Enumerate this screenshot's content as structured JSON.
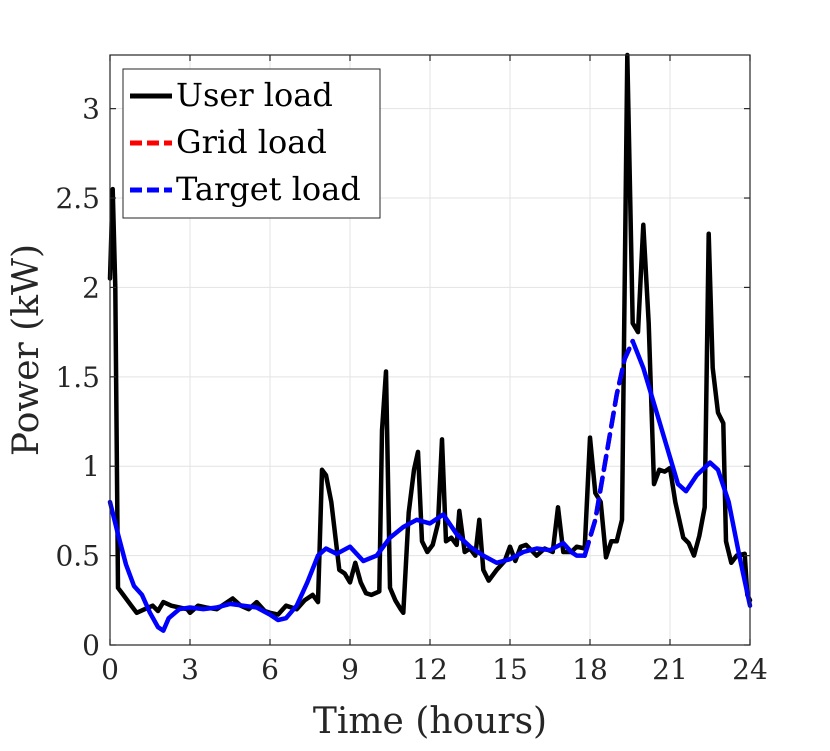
{
  "chart_data": {
    "type": "line",
    "xlabel": "Time (hours)",
    "ylabel": "Power (kW)",
    "xlim": [
      0,
      24
    ],
    "ylim": [
      0,
      3.3
    ],
    "xticks": [
      0,
      3,
      6,
      9,
      12,
      15,
      18,
      21,
      24
    ],
    "xtick_labels": [
      "0",
      "3",
      "6",
      "9",
      "12",
      "15",
      "18",
      "21",
      "24"
    ],
    "yticks": [
      0,
      0.5,
      1,
      1.5,
      2,
      2.5,
      3
    ],
    "ytick_labels": [
      "0",
      "0.5",
      "1",
      "1.5",
      "2",
      "2.5",
      "3"
    ],
    "grid": true,
    "legend_position": "top-left",
    "series": [
      {
        "name": "User load",
        "color": "#000000",
        "style": "solid",
        "points": [
          [
            0,
            2.05
          ],
          [
            0.1,
            2.55
          ],
          [
            0.2,
            2.0
          ],
          [
            0.3,
            0.32
          ],
          [
            0.5,
            0.28
          ],
          [
            0.8,
            0.22
          ],
          [
            1.0,
            0.18
          ],
          [
            1.3,
            0.2
          ],
          [
            1.6,
            0.22
          ],
          [
            1.8,
            0.19
          ],
          [
            2.0,
            0.24
          ],
          [
            2.3,
            0.22
          ],
          [
            2.6,
            0.21
          ],
          [
            2.9,
            0.2
          ],
          [
            3.0,
            0.18
          ],
          [
            3.3,
            0.22
          ],
          [
            3.6,
            0.21
          ],
          [
            4.0,
            0.2
          ],
          [
            4.3,
            0.23
          ],
          [
            4.6,
            0.26
          ],
          [
            4.9,
            0.22
          ],
          [
            5.2,
            0.2
          ],
          [
            5.5,
            0.24
          ],
          [
            5.8,
            0.19
          ],
          [
            6.0,
            0.18
          ],
          [
            6.3,
            0.17
          ],
          [
            6.6,
            0.22
          ],
          [
            7.0,
            0.2
          ],
          [
            7.3,
            0.25
          ],
          [
            7.6,
            0.28
          ],
          [
            7.8,
            0.24
          ],
          [
            7.95,
            0.98
          ],
          [
            8.1,
            0.95
          ],
          [
            8.3,
            0.8
          ],
          [
            8.6,
            0.42
          ],
          [
            8.8,
            0.4
          ],
          [
            9.0,
            0.35
          ],
          [
            9.2,
            0.46
          ],
          [
            9.4,
            0.35
          ],
          [
            9.6,
            0.29
          ],
          [
            9.8,
            0.28
          ],
          [
            10.1,
            0.3
          ],
          [
            10.2,
            1.2
          ],
          [
            10.35,
            1.53
          ],
          [
            10.5,
            0.32
          ],
          [
            10.7,
            0.25
          ],
          [
            10.9,
            0.2
          ],
          [
            11.0,
            0.18
          ],
          [
            11.2,
            0.74
          ],
          [
            11.4,
            0.98
          ],
          [
            11.55,
            1.08
          ],
          [
            11.7,
            0.58
          ],
          [
            11.9,
            0.52
          ],
          [
            12.1,
            0.56
          ],
          [
            12.3,
            0.68
          ],
          [
            12.45,
            1.15
          ],
          [
            12.6,
            0.58
          ],
          [
            12.8,
            0.6
          ],
          [
            13.0,
            0.56
          ],
          [
            13.1,
            0.75
          ],
          [
            13.3,
            0.52
          ],
          [
            13.5,
            0.54
          ],
          [
            13.7,
            0.5
          ],
          [
            13.85,
            0.7
          ],
          [
            14.0,
            0.42
          ],
          [
            14.2,
            0.36
          ],
          [
            14.5,
            0.42
          ],
          [
            14.8,
            0.47
          ],
          [
            15.0,
            0.55
          ],
          [
            15.2,
            0.47
          ],
          [
            15.4,
            0.55
          ],
          [
            15.6,
            0.56
          ],
          [
            15.8,
            0.53
          ],
          [
            16.0,
            0.5
          ],
          [
            16.3,
            0.54
          ],
          [
            16.6,
            0.52
          ],
          [
            16.8,
            0.77
          ],
          [
            17.0,
            0.52
          ],
          [
            17.3,
            0.52
          ],
          [
            17.5,
            0.55
          ],
          [
            17.8,
            0.54
          ],
          [
            18.0,
            1.16
          ],
          [
            18.2,
            0.85
          ],
          [
            18.4,
            0.8
          ],
          [
            18.6,
            0.49
          ],
          [
            18.8,
            0.58
          ],
          [
            19.0,
            0.58
          ],
          [
            19.2,
            0.7
          ],
          [
            19.4,
            3.3
          ],
          [
            19.6,
            1.8
          ],
          [
            19.8,
            1.75
          ],
          [
            20.0,
            2.35
          ],
          [
            20.2,
            1.8
          ],
          [
            20.4,
            0.9
          ],
          [
            20.6,
            0.98
          ],
          [
            20.8,
            0.97
          ],
          [
            21.0,
            0.99
          ],
          [
            21.2,
            0.8
          ],
          [
            21.5,
            0.6
          ],
          [
            21.7,
            0.57
          ],
          [
            21.9,
            0.5
          ],
          [
            22.1,
            0.61
          ],
          [
            22.3,
            0.77
          ],
          [
            22.45,
            2.3
          ],
          [
            22.6,
            1.55
          ],
          [
            22.8,
            1.3
          ],
          [
            23.0,
            1.24
          ],
          [
            23.1,
            0.58
          ],
          [
            23.3,
            0.46
          ],
          [
            23.5,
            0.5
          ],
          [
            23.8,
            0.51
          ],
          [
            23.9,
            0.28
          ],
          [
            24.0,
            0.25
          ]
        ]
      },
      {
        "name": "Grid load",
        "color": "#ff0000",
        "style": "dashed",
        "points": [
          [
            17.8,
            0.5
          ],
          [
            18.2,
            0.7
          ],
          [
            18.6,
            1.05
          ],
          [
            19.0,
            1.4
          ],
          [
            19.3,
            1.6
          ],
          [
            19.6,
            1.7
          ]
        ]
      },
      {
        "name": "Target load",
        "color": "#0000ff",
        "style": "mixed",
        "points": [
          [
            0,
            0.8
          ],
          [
            0.3,
            0.62
          ],
          [
            0.6,
            0.45
          ],
          [
            0.9,
            0.33
          ],
          [
            1.2,
            0.28
          ],
          [
            1.5,
            0.18
          ],
          [
            1.8,
            0.1
          ],
          [
            2.0,
            0.08
          ],
          [
            2.2,
            0.15
          ],
          [
            2.6,
            0.2
          ],
          [
            3.0,
            0.21
          ],
          [
            3.5,
            0.2
          ],
          [
            4.0,
            0.21
          ],
          [
            4.5,
            0.23
          ],
          [
            5.0,
            0.22
          ],
          [
            5.5,
            0.21
          ],
          [
            6.0,
            0.17
          ],
          [
            6.3,
            0.14
          ],
          [
            6.6,
            0.15
          ],
          [
            7.0,
            0.22
          ],
          [
            7.4,
            0.35
          ],
          [
            7.8,
            0.5
          ],
          [
            8.1,
            0.54
          ],
          [
            8.5,
            0.51
          ],
          [
            9.0,
            0.55
          ],
          [
            9.5,
            0.47
          ],
          [
            10.0,
            0.5
          ],
          [
            10.5,
            0.6
          ],
          [
            11.0,
            0.66
          ],
          [
            11.5,
            0.7
          ],
          [
            12.0,
            0.68
          ],
          [
            12.5,
            0.73
          ],
          [
            13.0,
            0.62
          ],
          [
            13.5,
            0.55
          ],
          [
            14.0,
            0.5
          ],
          [
            14.5,
            0.46
          ],
          [
            15.0,
            0.48
          ],
          [
            15.5,
            0.52
          ],
          [
            16.0,
            0.54
          ],
          [
            16.5,
            0.53
          ],
          [
            17.0,
            0.57
          ],
          [
            17.3,
            0.52
          ],
          [
            17.5,
            0.5
          ],
          [
            17.8,
            0.5
          ],
          [
            18.2,
            0.7
          ],
          [
            18.6,
            1.05
          ],
          [
            19.0,
            1.4
          ],
          [
            19.3,
            1.6
          ],
          [
            19.6,
            1.7
          ],
          [
            20.0,
            1.55
          ],
          [
            20.5,
            1.3
          ],
          [
            21.0,
            1.05
          ],
          [
            21.3,
            0.9
          ],
          [
            21.6,
            0.86
          ],
          [
            22.0,
            0.95
          ],
          [
            22.5,
            1.02
          ],
          [
            22.8,
            0.98
          ],
          [
            23.2,
            0.8
          ],
          [
            23.6,
            0.5
          ],
          [
            24.0,
            0.22
          ]
        ],
        "dashed_range": [
          17.8,
          19.6
        ]
      }
    ]
  }
}
